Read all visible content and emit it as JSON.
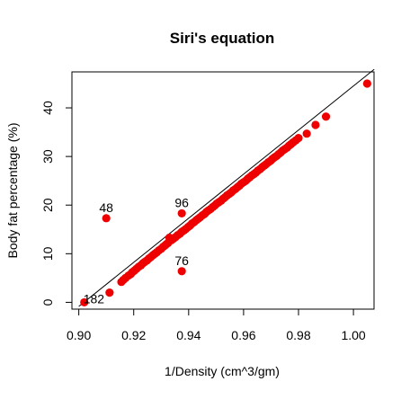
{
  "chart_data": {
    "type": "scatter",
    "title": "Siri's equation",
    "xlabel": "1/Density (cm^3/gm)",
    "ylabel": "Body fat percentage (%)",
    "xlim": [
      0.8975,
      1.0075
    ],
    "ylim": [
      -1.4,
      47.4
    ],
    "x_ticks": [
      "0.90",
      "0.92",
      "0.94",
      "0.96",
      "0.98",
      "1.00"
    ],
    "x_tick_values": [
      0.9,
      0.92,
      0.94,
      0.96,
      0.98,
      1.0
    ],
    "y_ticks": [
      "0",
      "10",
      "20",
      "30",
      "40"
    ],
    "y_tick_values": [
      0,
      10,
      20,
      30,
      40
    ],
    "grid": false,
    "point_color": "#ee0000",
    "line_color": "#000000",
    "reference_line": {
      "slope": 453.4,
      "intercept": -408.9
    },
    "outliers": [
      {
        "label": "48",
        "x": 0.91,
        "y": 17.3
      },
      {
        "label": "96",
        "x": 0.9375,
        "y": 18.3
      },
      {
        "label": "76",
        "x": 0.9375,
        "y": 6.4
      },
      {
        "label": "182",
        "x": 0.902,
        "y": 0.0
      }
    ],
    "points_x": [
      0.9112,
      0.9155,
      0.9162,
      0.917,
      0.9181,
      0.9189,
      0.9195,
      0.9202,
      0.921,
      0.9218,
      0.9226,
      0.9233,
      0.924,
      0.9248,
      0.9255,
      0.9262,
      0.927,
      0.9277,
      0.9284,
      0.9292,
      0.93,
      0.9307,
      0.9314,
      0.932,
      0.9325,
      0.933,
      0.9338,
      0.9345,
      0.9352,
      0.936,
      0.9368,
      0.9375,
      0.9383,
      0.939,
      0.9398,
      0.9405,
      0.9412,
      0.942,
      0.9428,
      0.9435,
      0.9442,
      0.945,
      0.9458,
      0.9465,
      0.9472,
      0.948,
      0.9488,
      0.9495,
      0.9502,
      0.951,
      0.9518,
      0.9525,
      0.9532,
      0.954,
      0.9548,
      0.9555,
      0.9562,
      0.957,
      0.9578,
      0.9585,
      0.9592,
      0.96,
      0.9608,
      0.9615,
      0.9622,
      0.963,
      0.9638,
      0.9645,
      0.9652,
      0.966,
      0.9668,
      0.9675,
      0.9682,
      0.969,
      0.9698,
      0.9705,
      0.9712,
      0.972,
      0.9728,
      0.9735,
      0.9742,
      0.975,
      0.9758,
      0.9765,
      0.9772,
      0.978,
      0.979,
      0.98,
      0.983,
      0.9862,
      0.99,
      1.005
    ],
    "points_y": [
      2.0,
      4.2,
      4.6,
      5.0,
      5.5,
      5.8,
      6.2,
      6.5,
      6.9,
      7.3,
      7.6,
      8.0,
      8.3,
      8.6,
      9.0,
      9.3,
      9.7,
      10.0,
      10.3,
      10.7,
      11.0,
      11.4,
      11.7,
      12.0,
      12.2,
      13.3,
      12.8,
      13.1,
      13.4,
      13.8,
      14.1,
      14.5,
      14.8,
      15.1,
      15.5,
      15.8,
      16.2,
      16.5,
      16.9,
      17.2,
      17.5,
      17.9,
      18.2,
      18.6,
      18.9,
      19.2,
      19.6,
      19.9,
      20.3,
      20.6,
      20.9,
      21.3,
      21.6,
      22.0,
      22.3,
      22.6,
      23.0,
      23.3,
      23.7,
      24.0,
      24.4,
      24.7,
      25.0,
      25.4,
      25.7,
      26.1,
      26.4,
      26.7,
      27.1,
      27.4,
      27.8,
      28.1,
      28.4,
      28.8,
      29.1,
      29.5,
      29.8,
      30.1,
      30.5,
      30.8,
      31.2,
      31.5,
      31.8,
      32.2,
      32.5,
      32.9,
      33.3,
      33.8,
      34.7,
      36.5,
      38.2,
      45.0
    ]
  }
}
